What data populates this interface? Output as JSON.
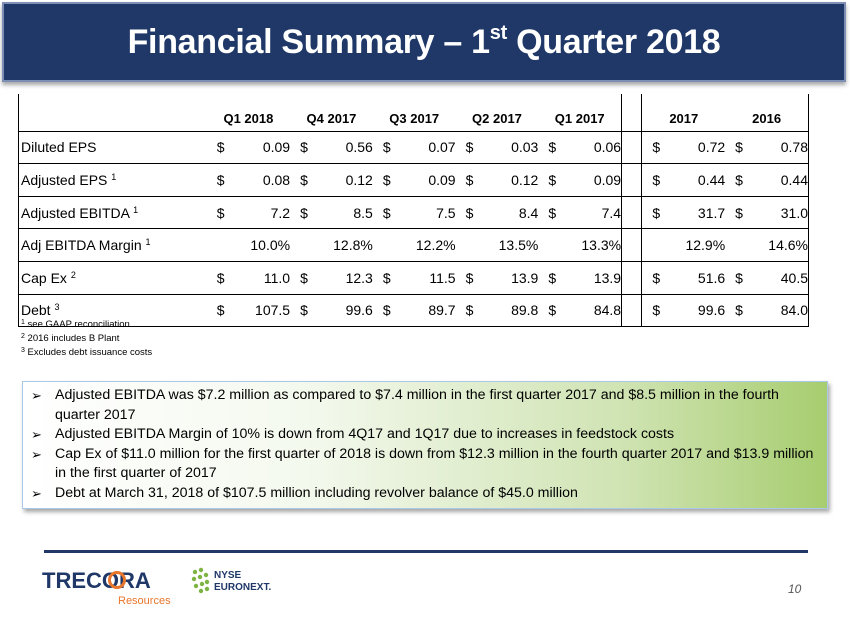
{
  "slide": {
    "title_main": "Financial Summary – 1",
    "title_sup": "st",
    "title_tail": " Quarter 2018",
    "page_number": "10"
  },
  "table": {
    "columns": [
      "Q1 2018",
      "Q4 2017",
      "Q3 2017",
      "Q2 2017",
      "Q1 2017",
      "2017",
      "2016"
    ],
    "rows": [
      {
        "label": "Diluted EPS",
        "fn": "",
        "type": "money",
        "values": [
          "0.09",
          "0.56",
          "0.07",
          "0.03",
          "0.06",
          "0.72",
          "0.78"
        ]
      },
      {
        "label": "Adjusted EPS ",
        "fn": "1",
        "type": "money",
        "values": [
          "0.08",
          "0.12",
          "0.09",
          "0.12",
          "0.09",
          "0.44",
          "0.44"
        ]
      },
      {
        "label": "Adjusted EBITDA ",
        "fn": "1",
        "type": "money",
        "values": [
          "7.2",
          "8.5",
          "7.5",
          "8.4",
          "7.4",
          "31.7",
          "31.0"
        ]
      },
      {
        "label": "Adj EBITDA Margin ",
        "fn": "1",
        "type": "pct",
        "values": [
          "10.0%",
          "12.8%",
          "12.2%",
          "13.5%",
          "13.3%",
          "12.9%",
          "14.6%"
        ]
      },
      {
        "label": "Cap Ex ",
        "fn": "2",
        "type": "money",
        "values": [
          "11.0",
          "12.3",
          "11.5",
          "13.9",
          "13.9",
          "51.6",
          "40.5"
        ]
      },
      {
        "label": "Debt ",
        "fn": "3",
        "type": "money",
        "values": [
          "107.5",
          "99.6",
          "89.7",
          "89.8",
          "84.8",
          "99.6",
          "84.0"
        ]
      }
    ],
    "currency_symbol": "$"
  },
  "footnotes": [
    {
      "num": "1",
      "text": " see GAAP reconciliation"
    },
    {
      "num": "2",
      "text": " 2016 includes B Plant"
    },
    {
      "num": "3",
      "text": " Excludes debt issuance costs"
    }
  ],
  "bullets": [
    "Adjusted EBITDA was $7.2 million as compared to $7.4 million in the first quarter 2017 and $8.5 million in the fourth quarter 2017",
    "Adjusted EBITDA Margin of 10% is down from 4Q17 and 1Q17 due to increases in feedstock costs",
    "Cap Ex of $11.0 million for the first quarter of 2018 is down from $12.3 million in the fourth quarter 2017 and $13.9 million in the first quarter of 2017",
    "Debt at March 31, 2018 of $107.5 million including revolver balance of $45.0 million"
  ],
  "bullet_marker": "➢",
  "logos": {
    "trecora_text": "TRECORA",
    "trecora_sub": "Resources",
    "nyse_line1": "NYSE",
    "nyse_line2": "EURONEXT."
  },
  "colors": {
    "title_bg": "#1f3868",
    "box_green": "#a7cd6f",
    "trecora_blue": "#1f3868",
    "trecora_orange": "#e8762b",
    "nyse_green": "#7cb342"
  }
}
